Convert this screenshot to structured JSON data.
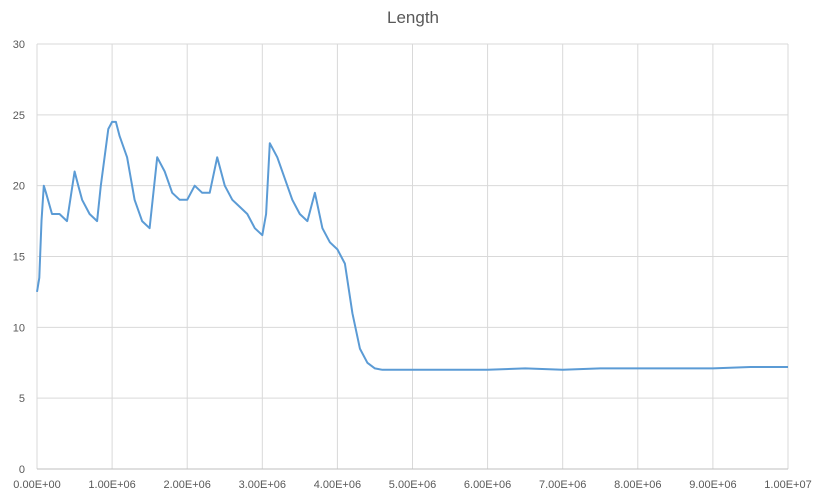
{
  "chart_data": {
    "type": "line",
    "title": "Length",
    "xlabel": "",
    "ylabel": "",
    "xlim": [
      0,
      10000000
    ],
    "ylim": [
      0,
      30
    ],
    "x_ticks": [
      {
        "value": 0,
        "label": "0.00E+00"
      },
      {
        "value": 1000000,
        "label": "1.00E+06"
      },
      {
        "value": 2000000,
        "label": "2.00E+06"
      },
      {
        "value": 3000000,
        "label": "3.00E+06"
      },
      {
        "value": 4000000,
        "label": "4.00E+06"
      },
      {
        "value": 5000000,
        "label": "5.00E+06"
      },
      {
        "value": 6000000,
        "label": "6.00E+06"
      },
      {
        "value": 7000000,
        "label": "7.00E+06"
      },
      {
        "value": 8000000,
        "label": "8.00E+06"
      },
      {
        "value": 9000000,
        "label": "9.00E+06"
      },
      {
        "value": 10000000,
        "label": "1.00E+07"
      }
    ],
    "y_ticks": [
      {
        "value": 0,
        "label": "0"
      },
      {
        "value": 5,
        "label": "5"
      },
      {
        "value": 10,
        "label": "10"
      },
      {
        "value": 15,
        "label": "15"
      },
      {
        "value": 20,
        "label": "20"
      },
      {
        "value": 25,
        "label": "25"
      },
      {
        "value": 30,
        "label": "30"
      }
    ],
    "grid": true,
    "series": [
      {
        "color": "#5b9bd5",
        "x": [
          0,
          30000,
          60000,
          90000,
          120000,
          200000,
          300000,
          400000,
          500000,
          550000,
          600000,
          700000,
          800000,
          850000,
          950000,
          1000000,
          1050000,
          1100000,
          1200000,
          1300000,
          1400000,
          1500000,
          1600000,
          1700000,
          1800000,
          1900000,
          2000000,
          2100000,
          2200000,
          2300000,
          2400000,
          2500000,
          2600000,
          2700000,
          2800000,
          2900000,
          3000000,
          3050000,
          3100000,
          3200000,
          3300000,
          3400000,
          3500000,
          3600000,
          3700000,
          3800000,
          3900000,
          4000000,
          4100000,
          4200000,
          4300000,
          4400000,
          4500000,
          4600000,
          5000000,
          5500000,
          6000000,
          6500000,
          7000000,
          7500000,
          8000000,
          8500000,
          9000000,
          9500000,
          10000000
        ],
        "y": [
          12.5,
          13.5,
          17.5,
          20.0,
          19.5,
          18.0,
          18.0,
          17.5,
          21.0,
          20.0,
          19.0,
          18.0,
          17.5,
          20.0,
          24.0,
          24.5,
          24.5,
          23.5,
          22.0,
          19.0,
          17.5,
          17.0,
          22.0,
          21.0,
          19.5,
          19.0,
          19.0,
          20.0,
          19.5,
          19.5,
          22.0,
          20.0,
          19.0,
          18.5,
          18.0,
          17.0,
          16.5,
          18.0,
          23.0,
          22.0,
          20.5,
          19.0,
          18.0,
          17.5,
          19.5,
          17.0,
          16.0,
          15.5,
          14.5,
          11.0,
          8.5,
          7.5,
          7.1,
          7.0,
          7.0,
          7.0,
          7.0,
          7.1,
          7.0,
          7.1,
          7.1,
          7.1,
          7.1,
          7.2,
          7.2
        ]
      }
    ]
  }
}
